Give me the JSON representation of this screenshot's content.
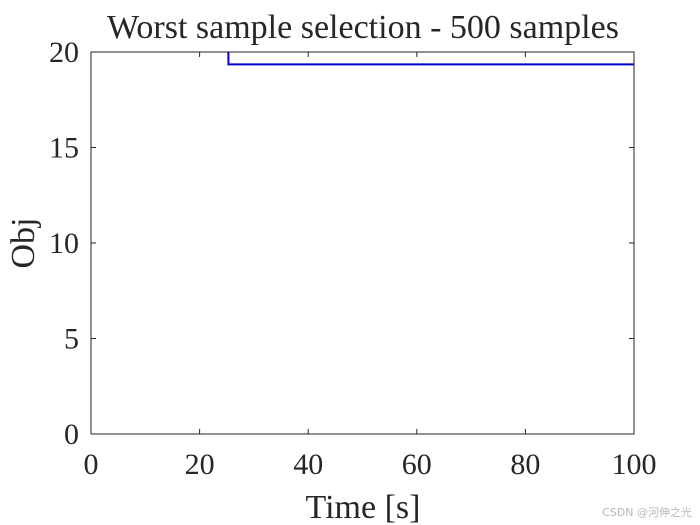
{
  "chart_data": {
    "type": "line",
    "title": "Worst sample selection - 500 samples",
    "xlabel": "Time [s]",
    "ylabel": "Obj",
    "xlim": [
      0,
      100
    ],
    "ylim": [
      0,
      20
    ],
    "xticks": [
      0,
      20,
      40,
      60,
      80,
      100
    ],
    "yticks": [
      0,
      5,
      10,
      15,
      20
    ],
    "grid": false,
    "series": [
      {
        "color": "#0000cc",
        "step": true,
        "x": [
          25.3,
          25.3,
          100
        ],
        "y": [
          20,
          19.35,
          19.35
        ]
      }
    ]
  },
  "watermark": "CSDN @河伸之光"
}
